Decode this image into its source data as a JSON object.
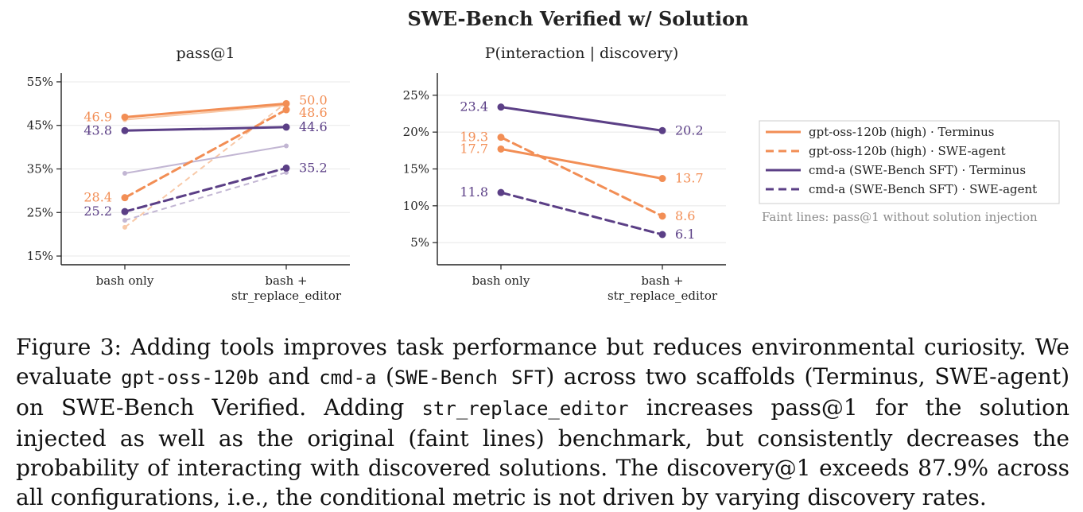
{
  "figure": {
    "suptitle": "SWE-Bench Verified w/ Solution",
    "note": "Faint lines: pass@1 without solution injection"
  },
  "colors": {
    "orange": "#f28e55",
    "purple": "#5b3f86",
    "orange_faint": "#f8c9a8",
    "purple_faint": "#c2b6d3",
    "grid": "#e8e8e8",
    "axis": "#222222",
    "note": "#8a8a8a"
  },
  "legend": {
    "placement": "right",
    "entries": [
      {
        "label": "gpt-oss-120b (high) · Terminus",
        "color": "#f28e55",
        "style": "solid"
      },
      {
        "label": "gpt-oss-120b (high) · SWE-agent",
        "color": "#f28e55",
        "style": "dashed"
      },
      {
        "label": "cmd-a (SWE-Bench SFT) · Terminus",
        "color": "#5b3f86",
        "style": "solid"
      },
      {
        "label": "cmd-a (SWE-Bench SFT) · SWE-agent",
        "color": "#5b3f86",
        "style": "dashed"
      }
    ]
  },
  "chart_data": [
    {
      "type": "line",
      "title": "pass@1",
      "categories": [
        "bash only",
        "bash +\nstr_replace_editor"
      ],
      "ylim": [
        13,
        57
      ],
      "yticks": [
        15,
        25,
        35,
        45,
        55
      ],
      "ytick_labels": [
        "15%",
        "25%",
        "35%",
        "45%",
        "55%"
      ],
      "grid": true,
      "series": [
        {
          "name": "gpt-oss-120b (high) · Terminus",
          "values": [
            46.9,
            50.0
          ],
          "labels": [
            "46.9",
            "50.0"
          ],
          "color": "#f28e55",
          "style": "solid"
        },
        {
          "name": "gpt-oss-120b (high) · SWE-agent",
          "values": [
            28.4,
            48.6
          ],
          "labels": [
            "28.4",
            "48.6"
          ],
          "color": "#f28e55",
          "style": "dashed"
        },
        {
          "name": "cmd-a (SWE-Bench SFT) · Terminus",
          "values": [
            43.8,
            44.6
          ],
          "labels": [
            "43.8",
            "44.6"
          ],
          "color": "#5b3f86",
          "style": "solid"
        },
        {
          "name": "cmd-a (SWE-Bench SFT) · SWE-agent",
          "values": [
            25.2,
            35.2
          ],
          "labels": [
            "25.2",
            "35.2"
          ],
          "color": "#5b3f86",
          "style": "dashed"
        }
      ],
      "faint_series": [
        {
          "values": [
            46.3,
            49.6
          ],
          "color": "#f8c9a8",
          "style": "solid"
        },
        {
          "values": [
            21.6,
            50.2
          ],
          "color": "#f8c9a8",
          "style": "dashed"
        },
        {
          "values": [
            34.0,
            40.3
          ],
          "color": "#c2b6d3",
          "style": "solid"
        },
        {
          "values": [
            23.2,
            34.2
          ],
          "color": "#c2b6d3",
          "style": "dashed"
        }
      ]
    },
    {
      "type": "line",
      "title": "P(interaction | discovery)",
      "categories": [
        "bash only",
        "bash +\nstr_replace_editor"
      ],
      "ylim": [
        2,
        28
      ],
      "yticks": [
        5,
        10,
        15,
        20,
        25
      ],
      "ytick_labels": [
        "5%",
        "10%",
        "15%",
        "20%",
        "25%"
      ],
      "grid": true,
      "series": [
        {
          "name": "gpt-oss-120b (high) · Terminus",
          "values": [
            17.7,
            13.7
          ],
          "labels": [
            "17.7",
            "13.7"
          ],
          "color": "#f28e55",
          "style": "solid"
        },
        {
          "name": "gpt-oss-120b (high) · SWE-agent",
          "values": [
            19.3,
            8.6
          ],
          "labels": [
            "19.3",
            "8.6"
          ],
          "color": "#f28e55",
          "style": "dashed"
        },
        {
          "name": "cmd-a (SWE-Bench SFT) · Terminus",
          "values": [
            23.4,
            20.2
          ],
          "labels": [
            "23.4",
            "20.2"
          ],
          "color": "#5b3f86",
          "style": "solid"
        },
        {
          "name": "cmd-a (SWE-Bench SFT) · SWE-agent",
          "values": [
            11.8,
            6.1
          ],
          "labels": [
            "11.8",
            "6.1"
          ],
          "color": "#5b3f86",
          "style": "dashed"
        }
      ]
    }
  ],
  "caption": {
    "p1": "Figure 3:  Adding tools improves task performance but reduces environmental curiosity. We evaluate ",
    "c1": "gpt-oss-120b",
    "p2": " and ",
    "c2": "cmd-a",
    "p3": " (",
    "c3": "SWE-Bench SFT",
    "p4": ") across two scaffolds (Terminus, SWE-agent) on SWE-Bench Verified. Adding ",
    "c4": "str_replace_editor",
    "p5": " increases pass@1 for the solution injected as well as the original (faint lines) benchmark, but consistently decreases the probability of interacting with discovered solutions. The discovery@1 exceeds 87.9% across all configurations, i.e., the conditional metric is not driven by varying discovery rates."
  }
}
